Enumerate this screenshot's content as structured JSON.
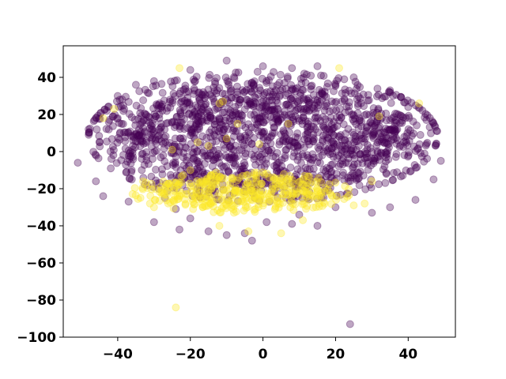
{
  "chart_data": {
    "type": "scatter",
    "title": "",
    "xlabel": "",
    "ylabel": "",
    "xlim": [
      -55,
      53
    ],
    "ylim": [
      -100,
      57
    ],
    "grid": false,
    "x_ticks": [
      -40,
      -20,
      0,
      20,
      40
    ],
    "y_ticks": [
      -100,
      -80,
      -60,
      -40,
      -20,
      0,
      20,
      40
    ],
    "marker_alpha": 0.35,
    "series": [
      {
        "color": "#440154",
        "cluster": {
          "cx": 0,
          "cy": 8,
          "rx": 48,
          "ry": 35,
          "count": 1600
        },
        "points": [
          {
            "x": -51,
            "y": -6
          },
          {
            "x": -48,
            "y": 12
          },
          {
            "x": -46,
            "y": -16
          },
          {
            "x": -45,
            "y": 5
          },
          {
            "x": -44,
            "y": -24
          },
          {
            "x": -43,
            "y": 22
          },
          {
            "x": -40,
            "y": 30
          },
          {
            "x": -35,
            "y": 36
          },
          {
            "x": -30,
            "y": 38
          },
          {
            "x": -20,
            "y": 44
          },
          {
            "x": -10,
            "y": 49
          },
          {
            "x": 0,
            "y": 46
          },
          {
            "x": 8,
            "y": 45
          },
          {
            "x": 15,
            "y": 46
          },
          {
            "x": 25,
            "y": 40
          },
          {
            "x": 35,
            "y": 33
          },
          {
            "x": 40,
            "y": 24
          },
          {
            "x": 45,
            "y": 17
          },
          {
            "x": 48,
            "y": 11
          },
          {
            "x": 49,
            "y": -5
          },
          {
            "x": 47,
            "y": -15
          },
          {
            "x": 42,
            "y": -26
          },
          {
            "x": 35,
            "y": -30
          },
          {
            "x": 30,
            "y": -33
          },
          {
            "x": 15,
            "y": -40
          },
          {
            "x": 8,
            "y": -39
          },
          {
            "x": -5,
            "y": -44
          },
          {
            "x": -10,
            "y": -45
          },
          {
            "x": -15,
            "y": -43
          },
          {
            "x": -23,
            "y": -42
          },
          {
            "x": -30,
            "y": -38
          },
          {
            "x": -37,
            "y": -27
          },
          {
            "x": -27,
            "y": -25
          },
          {
            "x": -24,
            "y": -31
          },
          {
            "x": -20,
            "y": -36
          },
          {
            "x": -3,
            "y": -48
          },
          {
            "x": 1,
            "y": -38
          },
          {
            "x": 10,
            "y": -34
          },
          {
            "x": 20,
            "y": -30
          },
          {
            "x": 24,
            "y": -93
          }
        ]
      },
      {
        "color": "#fde725",
        "cluster": {
          "cx": -6,
          "cy": -22,
          "rx": 30,
          "ry": 11,
          "count": 380
        },
        "points": [
          {
            "x": -24,
            "y": -84
          },
          {
            "x": -44,
            "y": 18
          },
          {
            "x": -41,
            "y": 23
          },
          {
            "x": -23,
            "y": 45
          },
          {
            "x": -12,
            "y": 26
          },
          {
            "x": -11,
            "y": 27
          },
          {
            "x": -10,
            "y": 7
          },
          {
            "x": -15,
            "y": 3
          },
          {
            "x": -18,
            "y": 5
          },
          {
            "x": -25,
            "y": 1
          },
          {
            "x": -7,
            "y": 15
          },
          {
            "x": -1,
            "y": 4
          },
          {
            "x": 7,
            "y": 15
          },
          {
            "x": 21,
            "y": 45
          },
          {
            "x": 32,
            "y": 19
          },
          {
            "x": 43,
            "y": 26
          },
          {
            "x": 30,
            "y": -16
          },
          {
            "x": 28,
            "y": -28
          },
          {
            "x": 25,
            "y": -29
          },
          {
            "x": 19,
            "y": -24
          },
          {
            "x": 15,
            "y": -26
          },
          {
            "x": 11,
            "y": -37
          },
          {
            "x": 5,
            "y": -44
          },
          {
            "x": -4,
            "y": -43
          },
          {
            "x": -12,
            "y": -40
          },
          {
            "x": -30,
            "y": -30
          },
          {
            "x": -33,
            "y": -16
          },
          {
            "x": -20,
            "y": -10
          },
          {
            "x": -16,
            "y": -20
          },
          {
            "x": -10,
            "y": -29
          },
          {
            "x": 0,
            "y": -21
          },
          {
            "x": 4,
            "y": -19
          }
        ]
      }
    ]
  }
}
